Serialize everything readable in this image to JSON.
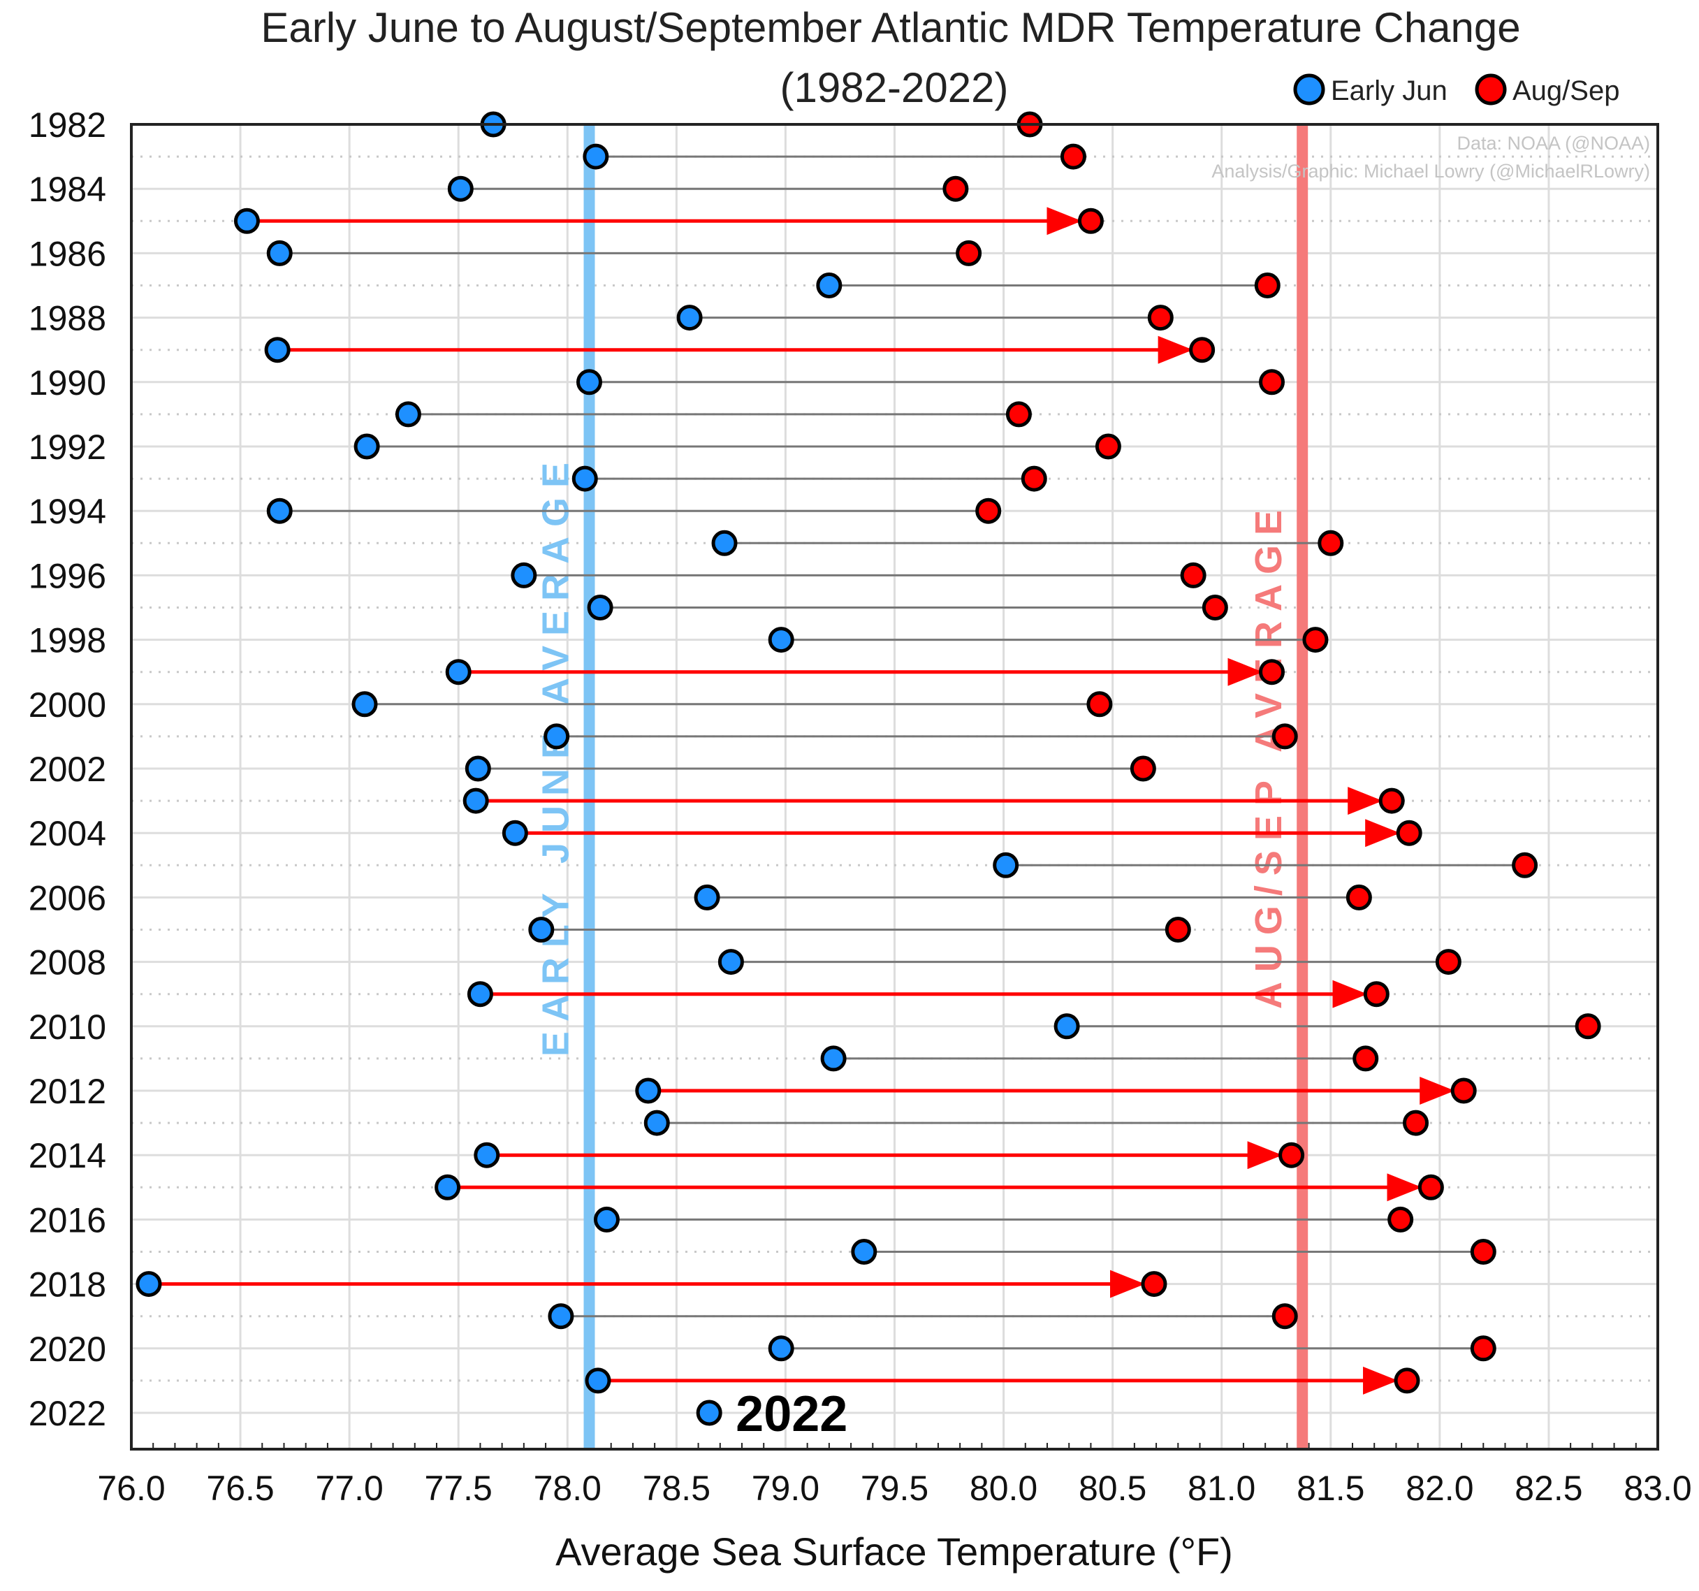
{
  "chart_data": {
    "type": "dumbbell",
    "title": "Early June to August/September Atlantic MDR Temperature Change",
    "subtitle": "(1982-2022)",
    "xlabel": "Average Sea Surface Temperature (°F)",
    "ylabel": "",
    "xlim": [
      76.0,
      83.0
    ],
    "xticks": [
      "76.0",
      "76.5",
      "77.0",
      "77.5",
      "78.0",
      "78.5",
      "79.0",
      "79.5",
      "80.0",
      "80.5",
      "81.0",
      "81.5",
      "82.0",
      "82.5",
      "83.0"
    ],
    "yticks": [
      "1982",
      "1984",
      "1986",
      "1988",
      "1990",
      "1992",
      "1994",
      "1996",
      "1998",
      "2000",
      "2002",
      "2004",
      "2006",
      "2008",
      "2010",
      "2012",
      "2014",
      "2016",
      "2018",
      "2020",
      "2022"
    ],
    "grid": true,
    "legend": {
      "position": "top-right",
      "entries": [
        {
          "label": "Early Jun",
          "color": "#1e90ff"
        },
        {
          "label": "Aug/Sep",
          "color": "#ff0000"
        }
      ]
    },
    "credits": [
      "Data: NOAA (@NOAA)",
      "Analysis/Graphic: Michael Lowry (@MichaelRLowry)"
    ],
    "reference_lines": [
      {
        "label": "EARLY JUNE AVERAGE",
        "x": 78.1,
        "color": "#7dc4f5"
      },
      {
        "label": "AUG/SEP AVERAGE",
        "x": 81.37,
        "color": "#f57a7a"
      }
    ],
    "callout": {
      "label": "2022",
      "year": 2022
    },
    "series": [
      {
        "name": "Early Jun",
        "color": "#1e90ff",
        "values": [
          77.66,
          78.13,
          77.51,
          76.53,
          76.68,
          79.2,
          78.56,
          76.67,
          78.1,
          77.27,
          77.08,
          78.08,
          76.68,
          78.72,
          77.8,
          78.15,
          78.98,
          77.5,
          77.07,
          77.95,
          77.59,
          77.58,
          77.76,
          80.01,
          78.64,
          77.88,
          78.75,
          77.6,
          80.29,
          79.22,
          78.37,
          78.41,
          77.63,
          77.45,
          78.18,
          79.36,
          76.08,
          77.97,
          78.98,
          78.14,
          78.65
        ]
      },
      {
        "name": "Aug/Sep",
        "color": "#ff0000",
        "values": [
          80.12,
          80.32,
          79.78,
          80.4,
          79.84,
          81.21,
          80.72,
          80.91,
          81.23,
          80.07,
          80.48,
          80.14,
          79.93,
          81.5,
          80.87,
          80.97,
          81.43,
          81.23,
          80.44,
          81.29,
          80.64,
          81.78,
          81.86,
          82.39,
          81.63,
          80.8,
          82.04,
          81.71,
          82.68,
          81.66,
          82.11,
          81.89,
          81.32,
          81.96,
          81.82,
          82.2,
          80.69,
          81.29,
          82.2,
          81.85,
          null
        ]
      }
    ],
    "years": [
      1982,
      1983,
      1984,
      1985,
      1986,
      1987,
      1988,
      1989,
      1990,
      1991,
      1992,
      1993,
      1994,
      1995,
      1996,
      1997,
      1998,
      1999,
      2000,
      2001,
      2002,
      2003,
      2004,
      2005,
      2006,
      2007,
      2008,
      2009,
      2010,
      2011,
      2012,
      2013,
      2014,
      2015,
      2016,
      2017,
      2018,
      2019,
      2020,
      2021,
      2022
    ],
    "highlighted_years": [
      1985,
      1989,
      1999,
      2003,
      2004,
      2009,
      2012,
      2014,
      2015,
      2018,
      2021
    ]
  }
}
